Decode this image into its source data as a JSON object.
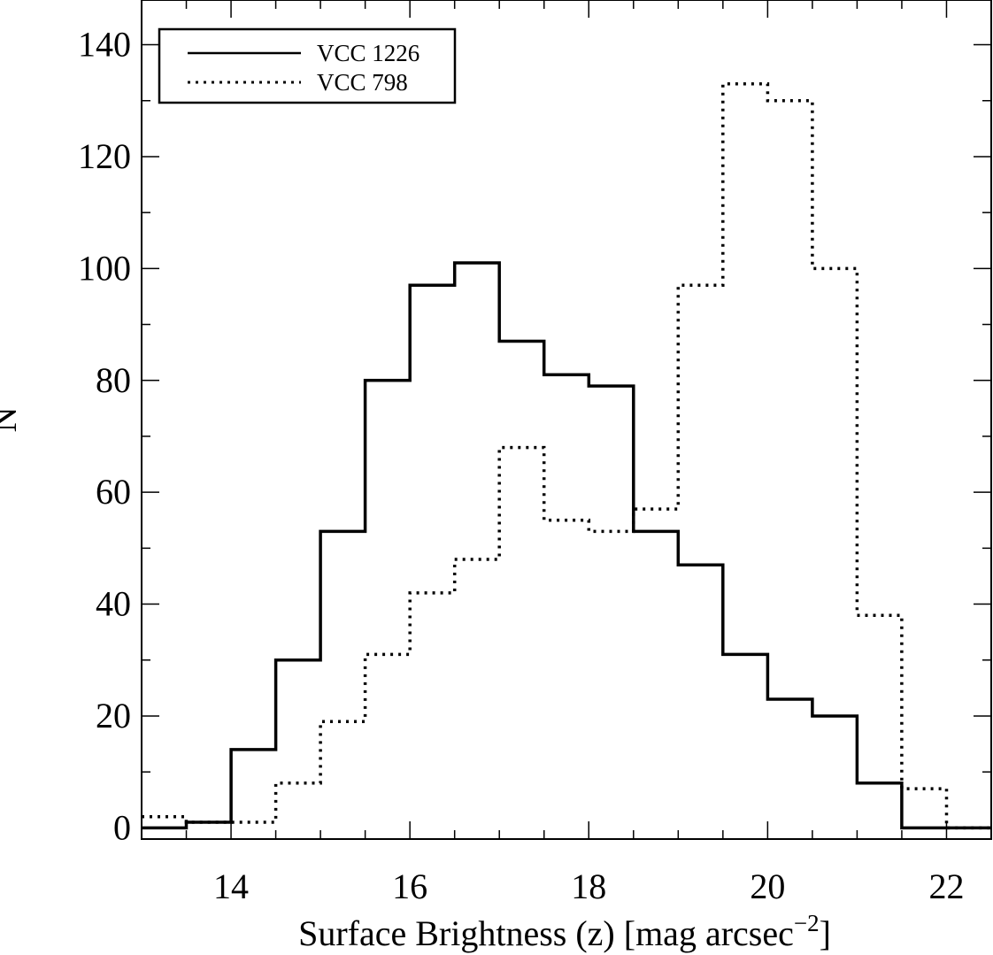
{
  "chart_data": {
    "type": "line",
    "step": "histogram",
    "xlabel": "Surface Brightness (z) [mag arcsec",
    "xlabel_sup": "−2",
    "xlabel_close": "]",
    "ylabel": "N",
    "xlim": [
      13.0,
      22.5
    ],
    "ylim": [
      -2,
      148
    ],
    "x_ticks": [
      14,
      16,
      18,
      20,
      22
    ],
    "x_tick_labels": [
      "14",
      "16",
      "18",
      "20",
      "22"
    ],
    "y_ticks": [
      0,
      20,
      40,
      60,
      80,
      100,
      120,
      140
    ],
    "y_tick_labels": [
      "0",
      "20",
      "40",
      "60",
      "80",
      "100",
      "120",
      "140"
    ],
    "x_minor_step": 0.5,
    "y_minor_step": 10,
    "grid": false,
    "legend_position": "top-left",
    "bin_edges": [
      13.0,
      13.5,
      14.0,
      14.5,
      15.0,
      15.5,
      16.0,
      16.5,
      17.0,
      17.5,
      18.0,
      18.5,
      19.0,
      19.5,
      20.0,
      20.5,
      21.0,
      21.5,
      22.0,
      22.5
    ],
    "series": [
      {
        "name": "VCC 1226",
        "line_style": "solid",
        "values": [
          0,
          1,
          14,
          30,
          53,
          80,
          97,
          101,
          87,
          81,
          79,
          53,
          47,
          31,
          23,
          20,
          8,
          0,
          0
        ]
      },
      {
        "name": "VCC 798",
        "line_style": "dotted",
        "values": [
          2,
          1,
          1,
          8,
          19,
          31,
          42,
          48,
          68,
          55,
          53,
          57,
          97,
          133,
          130,
          100,
          38,
          7,
          0
        ]
      }
    ]
  }
}
